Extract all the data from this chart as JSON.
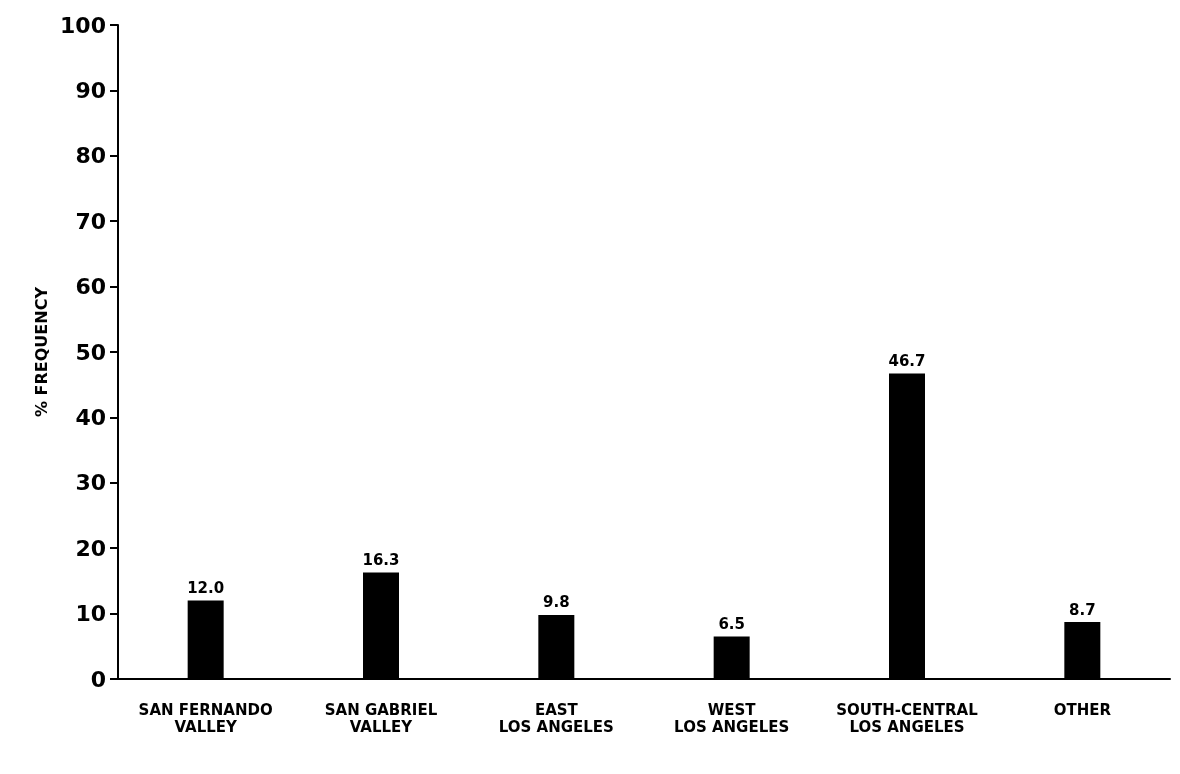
{
  "chart_data": {
    "type": "bar",
    "ylabel": "% FREQUENCY",
    "categories": [
      "SAN FERNANDO\nVALLEY",
      "SAN GABRIEL\nVALLEY",
      "EAST\nLOS ANGELES",
      "WEST\nLOS ANGELES",
      "SOUTH-CENTRAL\nLOS ANGELES",
      "OTHER"
    ],
    "values": [
      12.0,
      16.3,
      9.8,
      6.5,
      46.7,
      8.7
    ],
    "value_labels": [
      "12.0",
      "16.3",
      "9.8",
      "6.5",
      "46.7",
      "8.7"
    ],
    "color": "#000000",
    "ylim": [
      0,
      100
    ],
    "yticks": [
      0,
      10,
      20,
      30,
      40,
      50,
      60,
      70,
      80,
      90,
      100
    ],
    "grid": false
  }
}
